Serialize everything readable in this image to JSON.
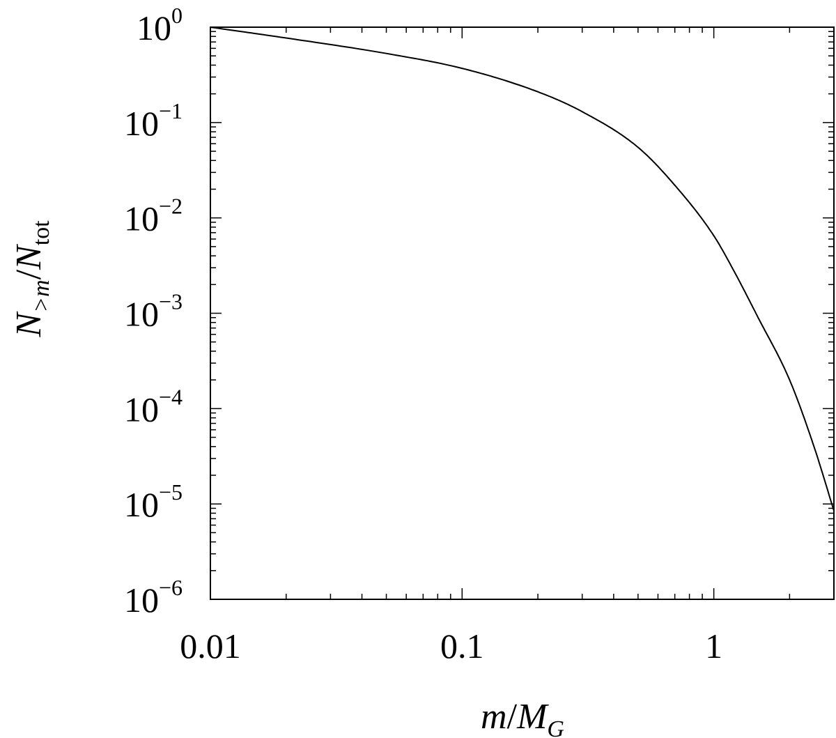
{
  "chart_data": {
    "type": "line",
    "title": "",
    "xlabel": {
      "main": "m",
      "slash": "/",
      "main2": "M",
      "sub2": "G"
    },
    "ylabel": {
      "main": "N",
      "sub": ">m",
      "slash": "/",
      "main2": "N",
      "sub2": "tot"
    },
    "xscale": "log",
    "yscale": "log",
    "xlim": [
      0.01,
      3
    ],
    "ylim": [
      1e-06,
      1
    ],
    "grid": false,
    "legend": "none",
    "x_ticks": [
      {
        "value": 0.01,
        "label": "0.01"
      },
      {
        "value": 0.1,
        "label": "0.1"
      },
      {
        "value": 1,
        "label": "1"
      }
    ],
    "y_ticks": [
      {
        "value": 1,
        "base": "10",
        "exp": "0"
      },
      {
        "value": 0.1,
        "base": "10",
        "exp": "−1"
      },
      {
        "value": 0.01,
        "base": "10",
        "exp": "−2"
      },
      {
        "value": 0.001,
        "base": "10",
        "exp": "−3"
      },
      {
        "value": 0.0001,
        "base": "10",
        "exp": "−4"
      },
      {
        "value": 1e-05,
        "base": "10",
        "exp": "−5"
      },
      {
        "value": 1e-06,
        "base": "10",
        "exp": "−6"
      }
    ],
    "series": [
      {
        "color": "#000000",
        "x": [
          0.01,
          0.02,
          0.05,
          0.1,
          0.2,
          0.3,
          0.5,
          0.7,
          1.0,
          1.2,
          1.5,
          2.0,
          2.5,
          3.0
        ],
        "y": [
          1.0,
          0.77,
          0.53,
          0.37,
          0.21,
          0.13,
          0.055,
          0.022,
          0.0065,
          0.0028,
          0.0009,
          0.0002,
          4e-05,
          8.5e-06
        ]
      }
    ]
  }
}
